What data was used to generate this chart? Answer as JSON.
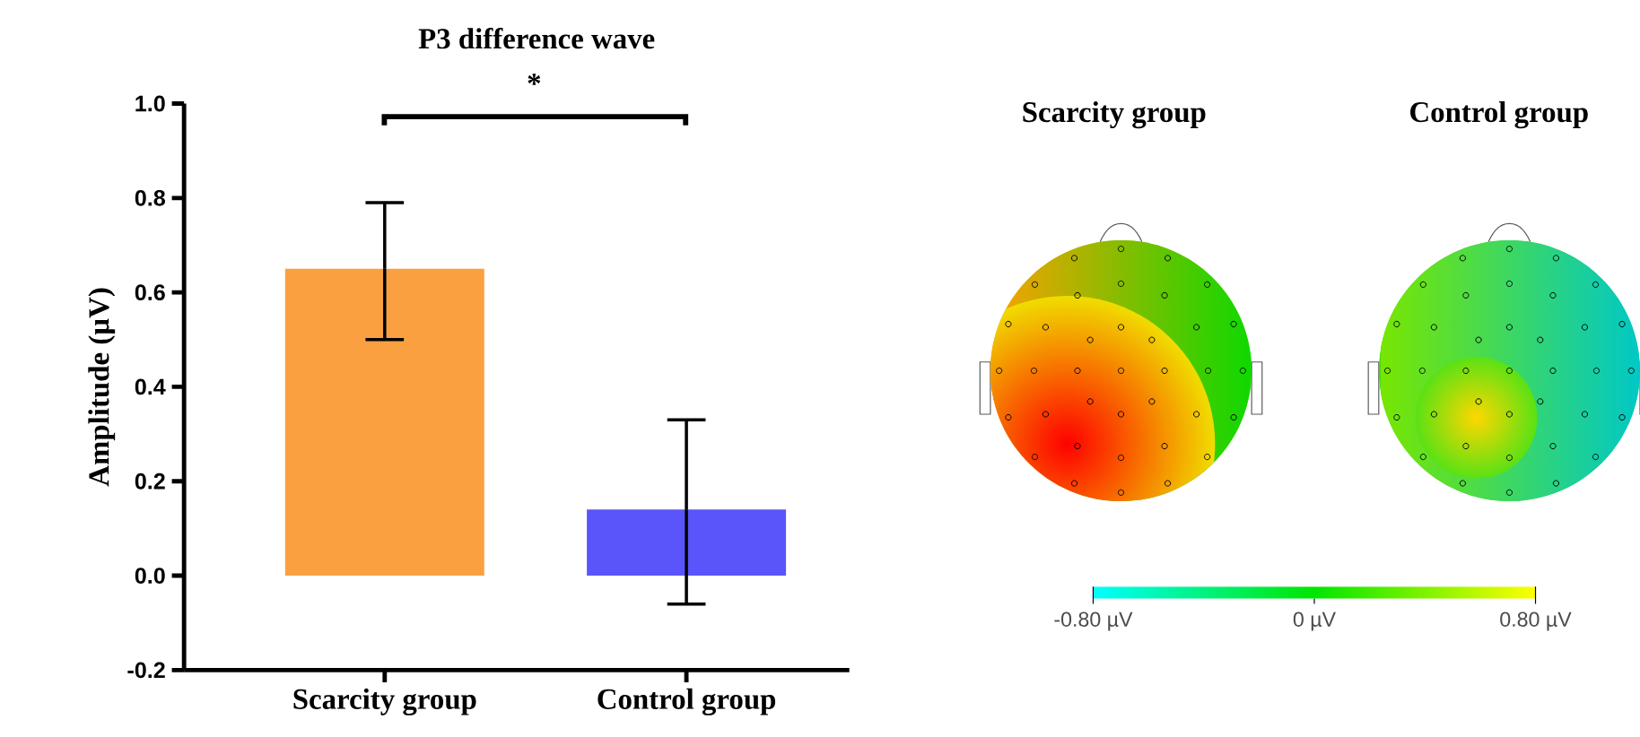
{
  "chart_data": [
    {
      "type": "bar",
      "title": "P3 difference wave",
      "ylabel": "Amplitude (µV)",
      "categories": [
        "Scarcity group",
        "Control group"
      ],
      "values": [
        0.65,
        0.14
      ],
      "colors": [
        "#fba040",
        "#5a55fa"
      ],
      "errors": [
        [
          0.5,
          0.79
        ],
        [
          -0.06,
          0.33
        ]
      ],
      "ylim": [
        -0.2,
        1.0
      ],
      "yticks": [
        {
          "value": -0.2,
          "label": "-0.2"
        },
        {
          "value": 0,
          "label": "0.0"
        },
        {
          "value": 0.2,
          "label": "0.2"
        },
        {
          "value": 0.4,
          "label": "0.4"
        },
        {
          "value": 0.6,
          "label": "0.6"
        },
        {
          "value": 0.8,
          "label": "0.8"
        },
        {
          "value": 1.0,
          "label": "1.0"
        }
      ],
      "annotations": [
        "*"
      ]
    },
    {
      "type": "other",
      "categories": [
        "Scarcity group",
        "Control group"
      ],
      "annotations": [
        "-0.80 µV",
        "0 µV",
        "0.80 µV"
      ]
    }
  ]
}
